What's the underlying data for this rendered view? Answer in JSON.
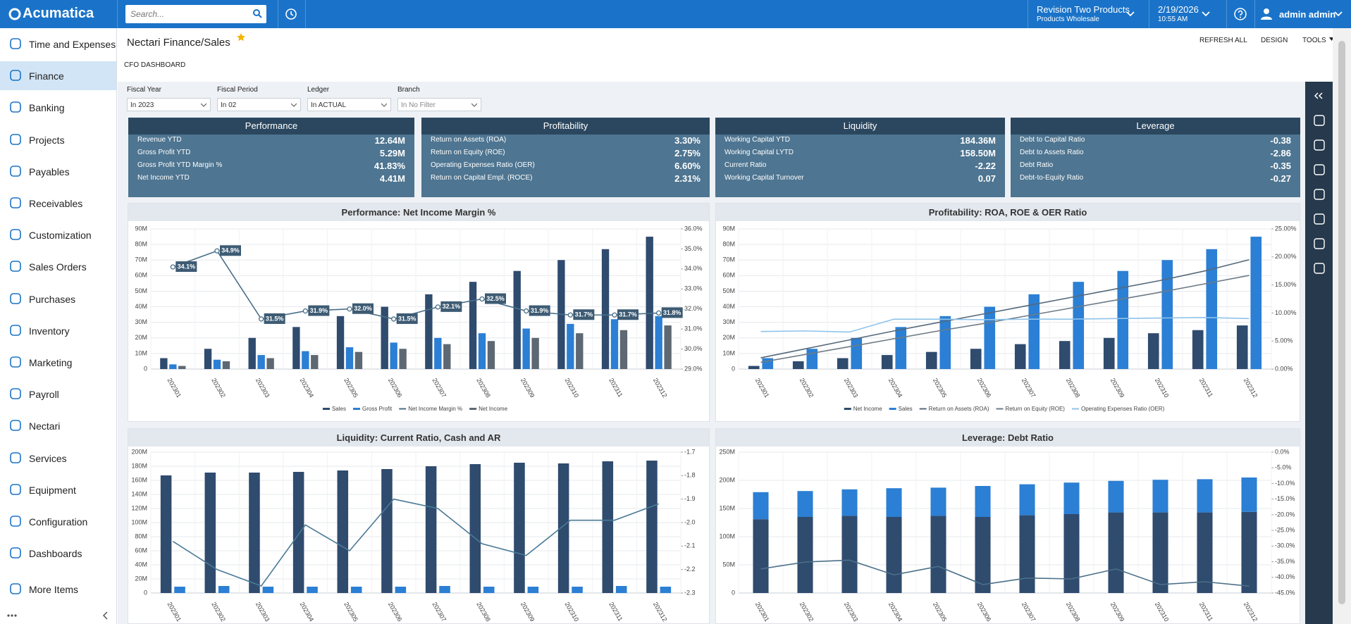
{
  "topbar": {
    "logo": "Acumatica",
    "search_placeholder": "Search...",
    "company": "Revision Two Products",
    "branch": "Products Wholesale",
    "date": "2/19/2026",
    "time": "10:55 AM",
    "user": "admin admin"
  },
  "sidebar": {
    "items": [
      "Time and Expenses",
      "Finance",
      "Banking",
      "Projects",
      "Payables",
      "Receivables",
      "Customization",
      "Sales Orders",
      "Purchases",
      "Inventory",
      "Marketing",
      "Payroll",
      "Nectari",
      "Services",
      "Equipment",
      "Configuration",
      "Dashboards",
      "More Items"
    ]
  },
  "header": {
    "title": "Nectari Finance/Sales",
    "actions": [
      "REFRESH ALL",
      "DESIGN",
      "TOOLS"
    ],
    "subtitle": "CFO DASHBOARD"
  },
  "filters": [
    {
      "label": "Fiscal Year",
      "value": "In 2023"
    },
    {
      "label": "Fiscal Period",
      "value": "In 02"
    },
    {
      "label": "Ledger",
      "value": "In ACTUAL"
    },
    {
      "label": "Branch",
      "value": "In No Filter"
    }
  ],
  "kpis": [
    {
      "title": "Performance",
      "rows": [
        {
          "label": "Revenue YTD",
          "value": "12.64M"
        },
        {
          "label": "Gross Profit YTD",
          "value": "5.29M"
        },
        {
          "label": "Gross Profit YTD Margin %",
          "value": "41.83%"
        },
        {
          "label": "Net Income YTD",
          "value": "4.41M"
        }
      ]
    },
    {
      "title": "Profitability",
      "rows": [
        {
          "label": "Return on Assets (ROA)",
          "value": "3.30%"
        },
        {
          "label": "Return on Equity (ROE)",
          "value": "2.75%"
        },
        {
          "label": "Operating Expenses Ratio (OER)",
          "value": "6.60%"
        },
        {
          "label": "Return on Capital Empl. (ROCE)",
          "value": "2.31%"
        }
      ]
    },
    {
      "title": "Liquidity",
      "rows": [
        {
          "label": "Working Capital YTD",
          "value": "184.36M"
        },
        {
          "label": "Working Capital LYTD",
          "value": "158.50M"
        },
        {
          "label": "Current Ratio",
          "value": "-2.22"
        },
        {
          "label": "Working Capital Turnover",
          "value": "0.07"
        }
      ]
    },
    {
      "title": "Leverage",
      "rows": [
        {
          "label": "Debt to Capital Ratio",
          "value": "-0.38"
        },
        {
          "label": "Debt to Assets Ratio",
          "value": "-2.86"
        },
        {
          "label": "Debt Ratio",
          "value": "-0.35"
        },
        {
          "label": "Debt-to-Equity Ratio",
          "value": "-0.27"
        }
      ]
    }
  ],
  "chart_data": [
    {
      "type": "combo",
      "title": "Performance: Net Income Margin %",
      "categories": [
        "202301",
        "202302",
        "202303",
        "202304",
        "202305",
        "202306",
        "202307",
        "202308",
        "202309",
        "202310",
        "202311",
        "202312"
      ],
      "ylim": [
        0,
        90000000
      ],
      "yticks": [
        0,
        {
          "value": 10000000,
          "label": "10M"
        },
        {
          "value": 20000000,
          "label": "20M"
        },
        {
          "value": 30000000,
          "label": "30M"
        },
        {
          "value": 40000000,
          "label": "40M"
        },
        {
          "value": 50000000,
          "label": "50M"
        },
        {
          "value": 60000000,
          "label": "60M"
        },
        {
          "value": 70000000,
          "label": "70M"
        },
        {
          "value": 80000000,
          "label": "80M"
        },
        {
          "value": 90000000,
          "label": "90M"
        }
      ],
      "y2lim": [
        29,
        36
      ],
      "y2ticks": [
        {
          "value": 29,
          "label": "29.0%"
        },
        {
          "value": 30,
          "label": "30.0%"
        },
        {
          "value": 31,
          "label": "31.0%"
        },
        {
          "value": 32,
          "label": "32.0%"
        },
        {
          "value": 33,
          "label": "33.0%"
        },
        {
          "value": 34,
          "label": "34.0%"
        },
        {
          "value": 35,
          "label": "35.0%"
        },
        {
          "value": 36,
          "label": "36.0%"
        }
      ],
      "grid": true,
      "stacked": false,
      "series": [
        {
          "name": "Sales",
          "type": "bar",
          "color": "#2f4b6e",
          "values": [
            7000000,
            13000000,
            20000000,
            27000000,
            34000000,
            40000000,
            48000000,
            56000000,
            63000000,
            70000000,
            77000000,
            85000000
          ]
        },
        {
          "name": "Gross Profit",
          "type": "bar",
          "color": "#2b7fd4",
          "values": [
            3000000,
            6000000,
            9000000,
            11500000,
            14000000,
            17000000,
            20000000,
            23000000,
            26000000,
            29000000,
            32000000,
            34000000
          ]
        },
        {
          "name": "Net Income Margin %",
          "type": "line",
          "axis": "y2",
          "color": "#4a6f88",
          "markers": true,
          "values": [
            34.1,
            34.9,
            31.5,
            31.9,
            32.0,
            31.5,
            32.1,
            32.5,
            31.9,
            31.7,
            31.7,
            31.8
          ],
          "value_labels": [
            "34.1%",
            "34.9%",
            "31.5%",
            "31.9%",
            "32.0%",
            "31.5%",
            "32.1%",
            "32.5%",
            "31.9%",
            "31.7%",
            "31.7%",
            "31.8%"
          ]
        },
        {
          "name": "Net Income",
          "type": "bar",
          "color": "#5d6872",
          "values": [
            2000000,
            5000000,
            7000000,
            9000000,
            11000000,
            13000000,
            16000000,
            18000000,
            20000000,
            23000000,
            25000000,
            28000000
          ]
        }
      ]
    },
    {
      "type": "combo",
      "title": "Profitability: ROA, ROE & OER Ratio",
      "categories": [
        "202301",
        "202302",
        "202303",
        "202304",
        "202305",
        "202306",
        "202307",
        "202308",
        "202309",
        "202310",
        "202311",
        "202312"
      ],
      "ylim": [
        0,
        90000000
      ],
      "yticks": [
        0,
        {
          "value": 10000000,
          "label": "10M"
        },
        {
          "value": 20000000,
          "label": "20M"
        },
        {
          "value": 30000000,
          "label": "30M"
        },
        {
          "value": 40000000,
          "label": "40M"
        },
        {
          "value": 50000000,
          "label": "50M"
        },
        {
          "value": 60000000,
          "label": "60M"
        },
        {
          "value": 70000000,
          "label": "70M"
        },
        {
          "value": 80000000,
          "label": "80M"
        },
        {
          "value": 90000000,
          "label": "90M"
        }
      ],
      "y2lim": [
        0,
        25
      ],
      "y2ticks": [
        {
          "value": 0,
          "label": "0.00%"
        },
        {
          "value": 5,
          "label": "5.00%"
        },
        {
          "value": 10,
          "label": "10.00%"
        },
        {
          "value": 15,
          "label": "15.00%"
        },
        {
          "value": 20,
          "label": "20.00%"
        },
        {
          "value": 25,
          "label": "25.00%"
        }
      ],
      "grid": true,
      "stacked": false,
      "series": [
        {
          "name": "Net Income",
          "type": "bar",
          "color": "#2f4b6e",
          "values": [
            2000000,
            5000000,
            7000000,
            9000000,
            11000000,
            13000000,
            16000000,
            18000000,
            20000000,
            23000000,
            25000000,
            28000000
          ]
        },
        {
          "name": "Sales",
          "type": "bar",
          "color": "#2b7fd4",
          "values": [
            7000000,
            13000000,
            20000000,
            27000000,
            34000000,
            40000000,
            48000000,
            56000000,
            63000000,
            70000000,
            77000000,
            85000000
          ]
        },
        {
          "name": "Return on Assets (ROA)",
          "type": "line",
          "axis": "y2",
          "color": "#56697b",
          "values": [
            2.0,
            3.6,
            5.2,
            6.8,
            8.3,
            9.8,
            11.3,
            12.8,
            14.3,
            15.8,
            17.5,
            19.5
          ]
        },
        {
          "name": "Return on Equity (ROE)",
          "type": "line",
          "axis": "y2",
          "color": "#6d7b86",
          "values": [
            1.2,
            2.6,
            4.0,
            5.4,
            6.8,
            8.1,
            9.5,
            10.9,
            12.3,
            13.7,
            15.2,
            16.7
          ]
        },
        {
          "name": "Operating Expenses Ratio (OER)",
          "type": "line",
          "axis": "y2",
          "color": "#8ec3ea",
          "values": [
            6.7,
            6.8,
            6.6,
            8.9,
            8.9,
            8.8,
            8.9,
            8.9,
            9.0,
            9.1,
            9.2,
            9.0
          ]
        }
      ]
    },
    {
      "type": "combo",
      "title": "Liquidity: Current Ratio, Cash and AR",
      "categories": [
        "202301",
        "202302",
        "202303",
        "202304",
        "202305",
        "202306",
        "202307",
        "202308",
        "202309",
        "202310",
        "202311",
        "202312"
      ],
      "ylim": [
        0,
        200000000
      ],
      "yticks": [
        0,
        {
          "value": 20000000,
          "label": "20M"
        },
        {
          "value": 40000000,
          "label": "40M"
        },
        {
          "value": 60000000,
          "label": "60M"
        },
        {
          "value": 80000000,
          "label": "80M"
        },
        {
          "value": 100000000,
          "label": "100M"
        },
        {
          "value": 120000000,
          "label": "120M"
        },
        {
          "value": 140000000,
          "label": "140M"
        },
        {
          "value": 160000000,
          "label": "160M"
        },
        {
          "value": 180000000,
          "label": "180M"
        },
        {
          "value": 200000000,
          "label": "200M"
        }
      ],
      "y2lim": [
        -2.3,
        -1.7
      ],
      "y2ticks": [
        -2.3,
        -2.2,
        -2.1,
        {
          "value": -2,
          "label": "-2.0"
        },
        -1.9,
        -1.8,
        -1.7
      ],
      "grid": true,
      "stacked": false,
      "series": [
        {
          "type": "bar",
          "color": "#2f4b6e",
          "values": [
            167000000,
            171000000,
            171000000,
            172000000,
            174000000,
            176000000,
            180000000,
            183000000,
            185000000,
            184000000,
            187000000,
            188000000
          ]
        },
        {
          "type": "bar",
          "color": "#2b7fd4",
          "values": [
            9000000,
            10000000,
            9000000,
            9000000,
            9000000,
            9000000,
            10000000,
            9000000,
            9000000,
            9000000,
            10000000,
            9000000
          ]
        },
        {
          "type": "line",
          "axis": "y2",
          "color": "#4a7a96",
          "values": [
            -2.08,
            -2.2,
            -2.27,
            -2.01,
            -2.12,
            -1.9,
            -1.94,
            -2.09,
            -2.14,
            -1.99,
            -1.99,
            -1.92
          ]
        }
      ]
    },
    {
      "type": "combo",
      "title": "Leverage: Debt Ratio",
      "categories": [
        "202301",
        "202302",
        "202303",
        "202304",
        "202305",
        "202306",
        "202307",
        "202308",
        "202309",
        "202310",
        "202311",
        "202312"
      ],
      "ylim": [
        0,
        250000000
      ],
      "yticks": [
        0,
        {
          "value": 50000000,
          "label": "50M"
        },
        {
          "value": 100000000,
          "label": "100M"
        },
        {
          "value": 150000000,
          "label": "150M"
        },
        {
          "value": 200000000,
          "label": "200M"
        },
        {
          "value": 250000000,
          "label": "250M"
        }
      ],
      "y2lim": [
        -45,
        0
      ],
      "y2ticks": [
        {
          "value": -45,
          "label": "-45.0%"
        },
        {
          "value": -40,
          "label": "-40.0%"
        },
        {
          "value": -35,
          "label": "-35.0%"
        },
        {
          "value": -30,
          "label": "-30.0%"
        },
        {
          "value": -25,
          "label": "-25.0%"
        },
        {
          "value": -20,
          "label": "-20.0%"
        },
        {
          "value": -15,
          "label": "-15.0%"
        },
        {
          "value": -10,
          "label": "-10.0%"
        },
        {
          "value": -5,
          "label": "-5.0%"
        },
        {
          "value": 0,
          "label": "0.0%"
        }
      ],
      "grid": true,
      "stacked": true,
      "series": [
        {
          "type": "bar",
          "color": "#2f4b6e",
          "values": [
            131000000,
            135000000,
            137000000,
            135000000,
            137000000,
            135000000,
            138000000,
            140000000,
            143000000,
            143000000,
            143000000,
            144000000
          ]
        },
        {
          "type": "bar",
          "color": "#2b7fd4",
          "values": [
            48000000,
            46000000,
            47000000,
            51000000,
            50000000,
            55000000,
            55000000,
            56000000,
            56000000,
            58000000,
            59000000,
            61000000
          ]
        },
        {
          "type": "line",
          "axis": "y2",
          "color": "#4a6f88",
          "values": [
            -37.3,
            -35.1,
            -34.5,
            -39.2,
            -36.5,
            -42.3,
            -40.2,
            -40.5,
            -37.3,
            -42.3,
            -41.4,
            -42.8
          ]
        }
      ]
    }
  ]
}
